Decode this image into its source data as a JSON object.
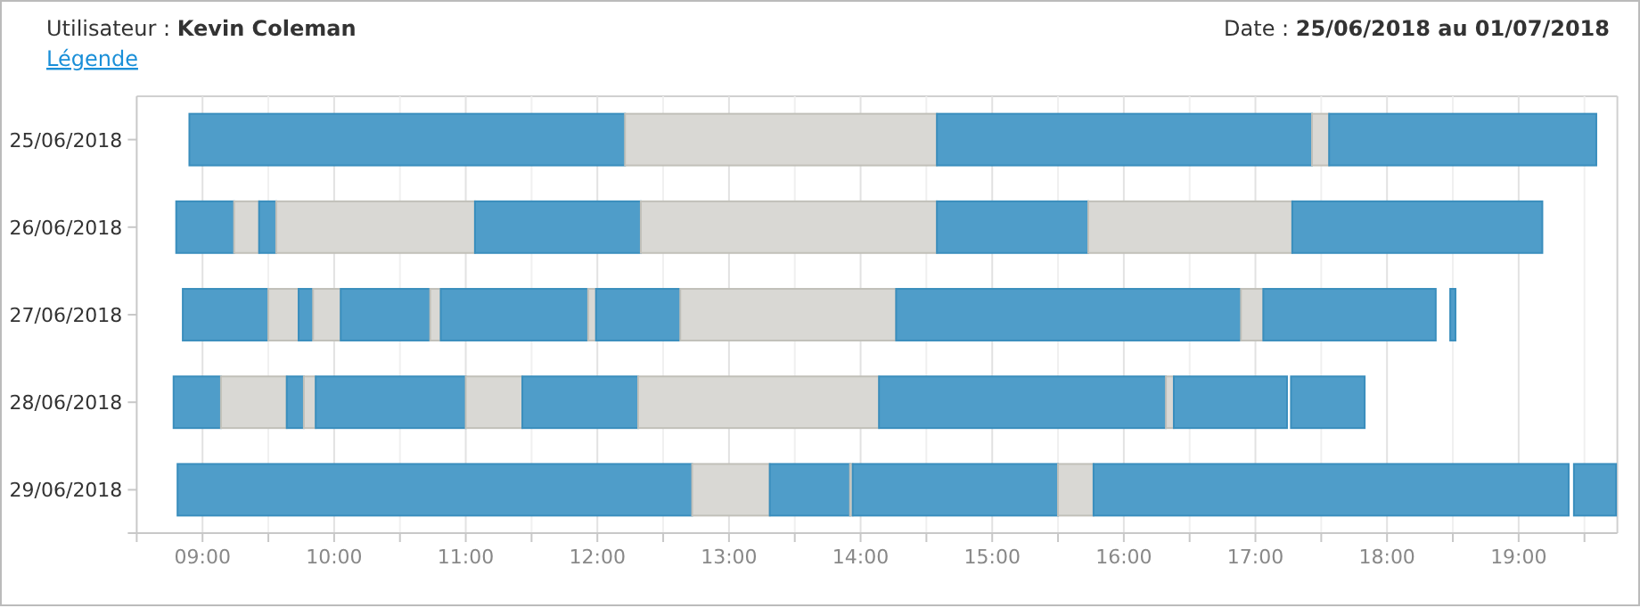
{
  "chart_data": {
    "type": "bar",
    "orientation": "horizontal",
    "title": "Utilisateur : Kevin Coleman",
    "subtitle": "Date : 25/06/2018 au 01/07/2018",
    "annotations": [
      "Légende"
    ],
    "categories": [
      "25/06/2018",
      "26/06/2018",
      "27/06/2018",
      "28/06/2018",
      "29/06/2018"
    ],
    "xlim": [
      8.5,
      19.75
    ],
    "xticks": [
      {
        "value": 9,
        "label": "09:00"
      },
      {
        "value": 9.5,
        "label": null
      },
      {
        "value": 10,
        "label": "10:00"
      },
      {
        "value": 10.5,
        "label": null
      },
      {
        "value": 11,
        "label": "11:00"
      },
      {
        "value": 11.5,
        "label": null
      },
      {
        "value": 12,
        "label": "12:00"
      },
      {
        "value": 12.5,
        "label": null
      },
      {
        "value": 13,
        "label": "13:00"
      },
      {
        "value": 13.5,
        "label": null
      },
      {
        "value": 14,
        "label": "14:00"
      },
      {
        "value": 14.5,
        "label": null
      },
      {
        "value": 15,
        "label": "15:00"
      },
      {
        "value": 15.5,
        "label": null
      },
      {
        "value": 16,
        "label": "16:00"
      },
      {
        "value": 16.5,
        "label": null
      },
      {
        "value": 17,
        "label": "17:00"
      },
      {
        "value": 17.5,
        "label": null
      },
      {
        "value": 18,
        "label": "18:00"
      },
      {
        "value": 18.5,
        "label": null
      },
      {
        "value": 19,
        "label": "19:00"
      },
      {
        "value": 19.5,
        "label": null
      }
    ],
    "grid": "x",
    "series": [
      {
        "base": [
          8.9,
          8.8,
          8.85,
          8.78,
          8.81
        ],
        "values": [
          3.31,
          0.44,
          0.65,
          0.36,
          3.91
        ],
        "colors": [
          "#4f9dc9",
          "#4f9dc9",
          "#4f9dc9",
          "#4f9dc9",
          "#4f9dc9"
        ]
      },
      {
        "base": [
          12.21,
          9.24,
          9.5,
          9.14,
          12.72
        ],
        "values": [
          2.37,
          0.19,
          0.23,
          0.5,
          0.59
        ],
        "colors": [
          "#d9d8d4",
          "#d9d8d4",
          "#d9d8d4",
          "#d9d8d4",
          "#d9d8d4"
        ]
      },
      {
        "base": [
          14.58,
          9.43,
          9.73,
          9.64,
          13.31
        ],
        "values": [
          2.85,
          0.13,
          0.11,
          0.13,
          0.61
        ],
        "colors": [
          "#4f9dc9",
          "#4f9dc9",
          "#4f9dc9",
          "#4f9dc9",
          "#4f9dc9"
        ]
      },
      {
        "base": [
          17.43,
          9.56,
          9.84,
          9.77,
          13.92
        ],
        "values": [
          0.13,
          1.51,
          0.21,
          0.09,
          0.02
        ],
        "colors": [
          "#d9d8d4",
          "#d9d8d4",
          "#d9d8d4",
          "#d9d8d4",
          "#d9d8d4"
        ]
      },
      {
        "base": [
          17.56,
          11.07,
          10.05,
          9.86,
          13.94
        ],
        "values": [
          2.03,
          1.26,
          0.68,
          1.14,
          1.56
        ],
        "colors": [
          "#4f9dc9",
          "#4f9dc9",
          "#4f9dc9",
          "#4f9dc9",
          "#4f9dc9"
        ]
      },
      {
        "base": [
          null,
          12.33,
          10.73,
          11.0,
          15.5
        ],
        "values": [
          null,
          2.25,
          0.08,
          0.43,
          0.27
        ],
        "colors": [
          null,
          "#d9d8d4",
          "#d9d8d4",
          "#d9d8d4",
          "#d9d8d4"
        ]
      },
      {
        "base": [
          null,
          14.58,
          10.81,
          11.43,
          15.77
        ],
        "values": [
          null,
          1.15,
          1.12,
          0.88,
          3.61
        ],
        "colors": [
          null,
          "#4f9dc9",
          "#4f9dc9",
          "#4f9dc9",
          "#4f9dc9"
        ]
      },
      {
        "base": [
          null,
          15.73,
          11.93,
          12.31,
          19.42
        ],
        "values": [
          null,
          1.55,
          0.06,
          1.83,
          0.32
        ],
        "colors": [
          null,
          "#d9d8d4",
          "#d9d8d4",
          "#d9d8d4",
          "#4f9dc9"
        ]
      },
      {
        "base": [
          null,
          17.28,
          11.99,
          14.14,
          null
        ],
        "values": [
          null,
          1.9,
          0.64,
          2.18,
          null
        ],
        "colors": [
          null,
          "#4f9dc9",
          "#4f9dc9",
          "#4f9dc9",
          null
        ]
      },
      {
        "base": [
          null,
          null,
          12.63,
          16.32,
          null
        ],
        "values": [
          null,
          null,
          1.64,
          0.06,
          null
        ],
        "colors": [
          null,
          null,
          "#d9d8d4",
          "#d9d8d4",
          null
        ]
      },
      {
        "base": [
          null,
          null,
          14.27,
          16.38,
          null
        ],
        "values": [
          null,
          null,
          2.62,
          0.86,
          null
        ],
        "colors": [
          null,
          null,
          "#4f9dc9",
          "#4f9dc9",
          null
        ]
      },
      {
        "base": [
          null,
          null,
          16.89,
          17.27,
          null
        ],
        "values": [
          null,
          null,
          0.17,
          0.56,
          null
        ],
        "colors": [
          null,
          null,
          "#d9d8d4",
          "#4f9dc9",
          null
        ]
      },
      {
        "base": [
          null,
          null,
          17.06,
          null,
          null
        ],
        "values": [
          null,
          null,
          1.31,
          null,
          null
        ],
        "colors": [
          null,
          null,
          "#4f9dc9",
          null,
          null
        ]
      },
      {
        "base": [
          null,
          null,
          18.48,
          null,
          null
        ],
        "values": [
          null,
          null,
          0.04,
          null,
          null
        ],
        "colors": [
          null,
          null,
          "#4f9dc9",
          null,
          null
        ]
      }
    ]
  }
}
